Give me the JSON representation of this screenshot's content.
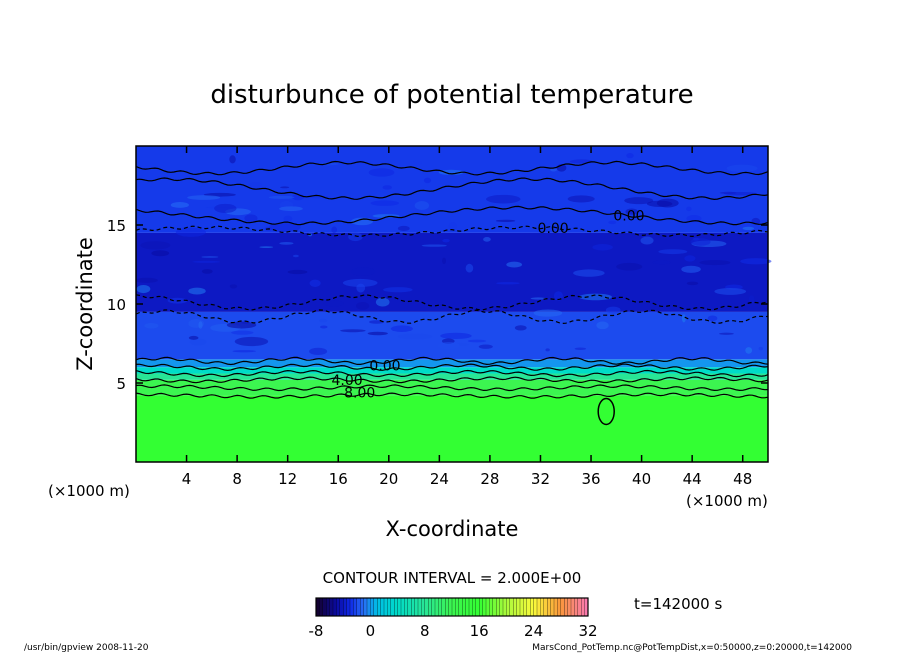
{
  "chart_data": {
    "type": "heatmap",
    "title": "disturbunce of potential temperature",
    "xlabel": "X-coordinate",
    "ylabel": "Z-coordinate",
    "x_unit": "(×1000 m)",
    "z_unit": "(×1000 m)",
    "xlim": [
      0,
      50
    ],
    "zlim": [
      0,
      20
    ],
    "x_ticks": [
      4,
      8,
      12,
      16,
      20,
      24,
      28,
      32,
      36,
      40,
      44,
      48
    ],
    "z_ticks": [
      5,
      10,
      15
    ],
    "contour_interval_text": "CONTOUR INTERVAL = 2.000E+00",
    "contour_labels": [
      "0.00",
      "0.00",
      "0.00",
      "4.00",
      "8.00"
    ],
    "colorbar": {
      "min": -8,
      "max": 32,
      "ticks": [
        -8,
        0,
        8,
        16,
        24,
        32
      ]
    },
    "time_text": "t=142000 s",
    "layers": [
      {
        "z_from": 0,
        "z_to": 4.2,
        "value": 16
      },
      {
        "z_from": 4.2,
        "z_to": 5.2,
        "value": 12
      },
      {
        "z_from": 5.2,
        "z_to": 5.6,
        "value": 8
      },
      {
        "z_from": 5.6,
        "z_to": 6.0,
        "value": 4
      },
      {
        "z_from": 6.0,
        "z_to": 6.5,
        "value": 0
      },
      {
        "z_from": 6.5,
        "z_to": 9.5,
        "value": -2
      },
      {
        "z_from": 9.5,
        "z_to": 14.5,
        "value": -4
      },
      {
        "z_from": 14.5,
        "z_to": 20,
        "value": -2.5
      }
    ],
    "colors": {
      "green": "#33ff33",
      "cyan": "#00ccdd",
      "blue": "#1f4cf0",
      "dark_blue": "#0a22d8",
      "mid_blue": "#2a6cf0"
    }
  },
  "footer": {
    "left": "/usr/bin/gpview   2008-11-20",
    "right": "MarsCond_PotTemp.nc@PotTempDist,x=0:50000,z=0:20000,t=142000"
  }
}
